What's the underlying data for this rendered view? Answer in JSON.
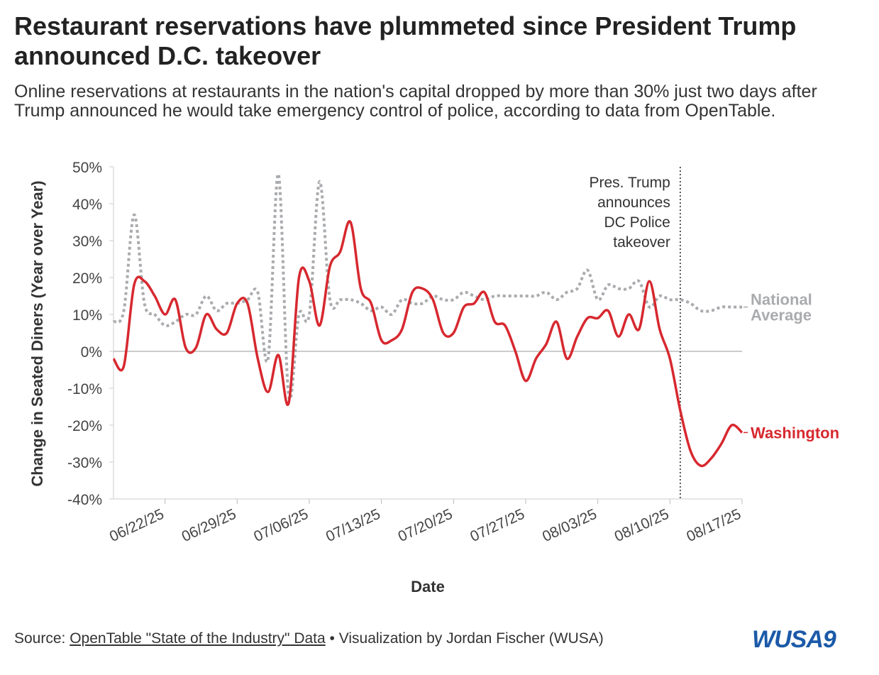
{
  "chart_data": {
    "type": "line",
    "title": "Restaurant reservations have plummeted since President Trump announced D.C. takeover",
    "subtitle": "Online reservations at restaurants in the nation's capital dropped by more than 30% just two days after Trump announced he would take emergency control of police, according to data from OpenTable.",
    "x_label": "Date",
    "y_label": "Change in Seated Diners (Year over Year)",
    "x": [
      "2025-06-17",
      "2025-06-18",
      "2025-06-19",
      "2025-06-20",
      "2025-06-21",
      "2025-06-22",
      "2025-06-23",
      "2025-06-24",
      "2025-06-25",
      "2025-06-26",
      "2025-06-27",
      "2025-06-28",
      "2025-06-29",
      "2025-06-30",
      "2025-07-01",
      "2025-07-02",
      "2025-07-03",
      "2025-07-04",
      "2025-07-05",
      "2025-07-06",
      "2025-07-07",
      "2025-07-08",
      "2025-07-09",
      "2025-07-10",
      "2025-07-11",
      "2025-07-12",
      "2025-07-13",
      "2025-07-14",
      "2025-07-15",
      "2025-07-16",
      "2025-07-17",
      "2025-07-18",
      "2025-07-19",
      "2025-07-20",
      "2025-07-21",
      "2025-07-22",
      "2025-07-23",
      "2025-07-24",
      "2025-07-25",
      "2025-07-26",
      "2025-07-27",
      "2025-07-28",
      "2025-07-29",
      "2025-07-30",
      "2025-07-31",
      "2025-08-01",
      "2025-08-02",
      "2025-08-03",
      "2025-08-04",
      "2025-08-05",
      "2025-08-06",
      "2025-08-07",
      "2025-08-08",
      "2025-08-09",
      "2025-08-10",
      "2025-08-11",
      "2025-08-12",
      "2025-08-13",
      "2025-08-14",
      "2025-08-15",
      "2025-08-16",
      "2025-08-17"
    ],
    "series": [
      {
        "name": "National Average",
        "color": "#a9abae",
        "style": "dotted",
        "values": [
          8,
          11,
          37,
          13,
          10,
          7,
          8,
          10,
          10,
          15,
          11,
          13,
          13,
          14,
          16,
          -2,
          48,
          -12,
          10,
          10,
          46,
          14,
          14,
          14,
          13,
          11,
          12,
          10,
          14,
          13,
          13,
          15,
          14,
          14,
          16,
          15,
          14,
          15,
          15,
          15,
          15,
          15,
          16,
          14,
          16,
          17,
          22,
          14,
          18,
          17,
          17,
          19,
          12,
          15,
          14,
          14,
          13,
          11,
          11,
          12,
          12,
          12
        ]
      },
      {
        "name": "Washington",
        "color": "#d7282f",
        "style": "solid",
        "values": [
          -2,
          -4,
          18,
          19,
          15,
          10,
          14,
          1,
          1,
          10,
          6,
          5,
          13,
          13,
          -2,
          -11,
          -1,
          -14,
          20,
          19,
          7,
          23,
          27,
          35,
          17,
          13,
          3,
          3,
          6,
          16,
          17,
          14,
          5,
          5,
          12,
          13,
          16,
          8,
          7,
          0,
          -8,
          -2,
          2,
          8,
          -2,
          4,
          9,
          9,
          11,
          4,
          10,
          6,
          19,
          6,
          -2,
          -16,
          -27,
          -31,
          -29,
          -25,
          -20,
          -22
        ]
      }
    ],
    "xlim": [
      "2025-06-17",
      "2025-08-17"
    ],
    "xticks": [
      {
        "value": "2025-06-22",
        "label": "06/22/25"
      },
      {
        "value": "2025-06-29",
        "label": "06/29/25"
      },
      {
        "value": "2025-07-06",
        "label": "07/06/25"
      },
      {
        "value": "2025-07-13",
        "label": "07/13/25"
      },
      {
        "value": "2025-07-20",
        "label": "07/20/25"
      },
      {
        "value": "2025-07-27",
        "label": "07/27/25"
      },
      {
        "value": "2025-08-03",
        "label": "08/03/25"
      },
      {
        "value": "2025-08-10",
        "label": "08/10/25"
      },
      {
        "value": "2025-08-17",
        "label": "08/17/25"
      }
    ],
    "ylim": [
      -40,
      50
    ],
    "yticks": [
      {
        "value": -40,
        "label": "-40%"
      },
      {
        "value": -30,
        "label": "-30%"
      },
      {
        "value": -20,
        "label": "-20%"
      },
      {
        "value": -10,
        "label": "-10%"
      },
      {
        "value": 0,
        "label": "0%"
      },
      {
        "value": 10,
        "label": "10%"
      },
      {
        "value": 20,
        "label": "20%"
      },
      {
        "value": 30,
        "label": "30%"
      },
      {
        "value": 40,
        "label": "40%"
      },
      {
        "value": 50,
        "label": "50%"
      }
    ],
    "annotation": {
      "x": "2025-08-11",
      "lines": [
        "Pres. Trump",
        "announces",
        "DC Police",
        "takeover"
      ]
    },
    "source": {
      "prefix": "Source:",
      "link": "OpenTable \"State of the Industry\" Data",
      "suffix": "• Visualization by Jordan Fischer (WUSA)"
    },
    "logo": "WUSA9"
  }
}
